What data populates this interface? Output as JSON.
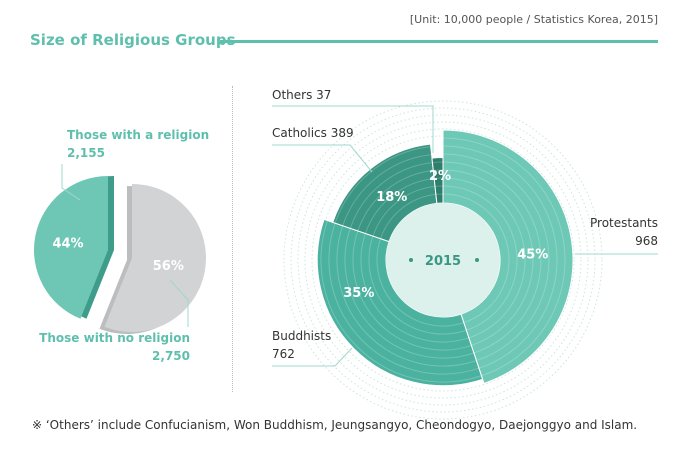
{
  "title": "Size of Religious Groups",
  "unit_note": "[Unit: 10,000 people / Statistics Korea, 2015]",
  "footnote": "※ ‘Others’ include Confucianism, Won Buddhism, Jeungsangyo, Cheondogyo, Daejonggyo and Islam.",
  "colors": {
    "accent": "#5fbfad",
    "religion": "#6ec7b5",
    "no_religion": "#d2d3d5",
    "protestants": "#6ec8b6",
    "buddhists": "#4bb2a0",
    "catholics": "#3b9683",
    "others": "#2e7e6d"
  },
  "chart_data": [
    {
      "type": "pie",
      "slices": [
        {
          "label": "Those with a religion",
          "value": 2155,
          "percent": "44%",
          "value_text": "2,155"
        },
        {
          "label": "Those with no religion",
          "value": 2750,
          "percent": "56%",
          "value_text": "2,750"
        }
      ]
    },
    {
      "type": "pie",
      "center_label": "2015",
      "slices": [
        {
          "label": "Protestants",
          "value": 968,
          "percent": "45%",
          "value_text": "968"
        },
        {
          "label": "Buddhists",
          "value": 762,
          "percent": "35%",
          "value_text": "762"
        },
        {
          "label": "Catholics",
          "value": 389,
          "percent": "18%",
          "value_text": "389"
        },
        {
          "label": "Others",
          "value": 37,
          "percent": "2%",
          "value_text": "37"
        }
      ]
    }
  ]
}
